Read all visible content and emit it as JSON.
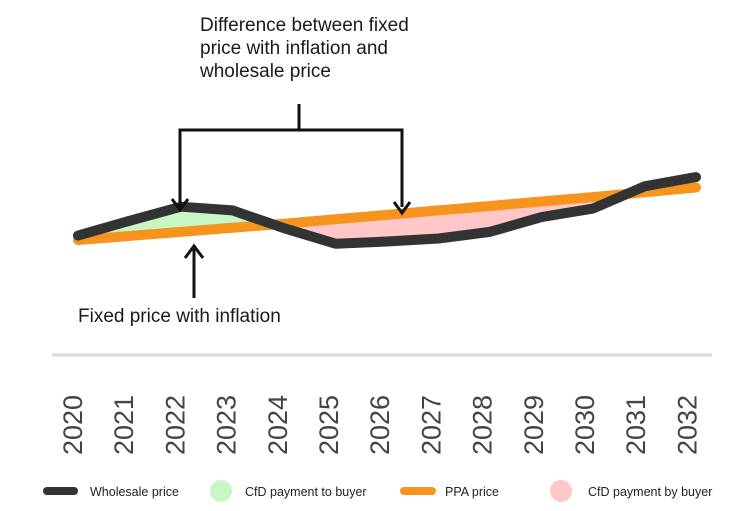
{
  "chart_data": {
    "type": "line",
    "x": [
      "2020",
      "2021",
      "2022",
      "2023",
      "2024",
      "2025",
      "2026",
      "2027",
      "2028",
      "2029",
      "2030",
      "2031",
      "2032"
    ],
    "series": [
      {
        "name": "Wholesale price",
        "color": "#333333",
        "values": [
          0.12,
          0.52,
          0.9,
          0.8,
          0.32,
          -0.1,
          -0.04,
          0.04,
          0.22,
          0.62,
          0.85,
          1.45,
          1.7
        ]
      },
      {
        "name": "PPA price",
        "color": "#F7941D",
        "values": [
          0.0,
          0.11,
          0.22,
          0.33,
          0.44,
          0.56,
          0.68,
          0.8,
          0.92,
          1.04,
          1.16,
          1.29,
          1.42
        ]
      }
    ],
    "fills": [
      {
        "name": "CfD payment to buyer",
        "color": "#C8F7C5"
      },
      {
        "name": "CfD payment by buyer",
        "color": "#FFC7C7"
      }
    ],
    "ylim": [
      -0.7,
      3.0
    ],
    "grid": false,
    "legend_position": "bottom"
  },
  "annotations": {
    "top": "Difference between fixed price with inflation and wholesale price",
    "bottom": "Fixed price with inflation"
  },
  "legend": [
    {
      "label": "Wholesale price",
      "type": "line",
      "color": "#333333"
    },
    {
      "label": "CfD payment to buyer",
      "type": "dot",
      "color": "#C8F7C5"
    },
    {
      "label": "PPA price",
      "type": "line",
      "color": "#F7941D"
    },
    {
      "label": "CfD payment by buyer",
      "type": "dot",
      "color": "#FFC7C7"
    }
  ]
}
